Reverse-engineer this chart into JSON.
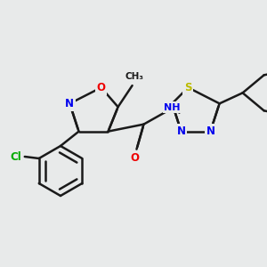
{
  "bg_color": "#e8eaea",
  "bond_color": "#1a1a1a",
  "bond_width": 1.8,
  "dbo": 0.012,
  "colors": {
    "N": "#0000ee",
    "O": "#ee0000",
    "S": "#bbbb00",
    "Cl": "#00aa00",
    "C": "#1a1a1a"
  },
  "afs": 8.5
}
